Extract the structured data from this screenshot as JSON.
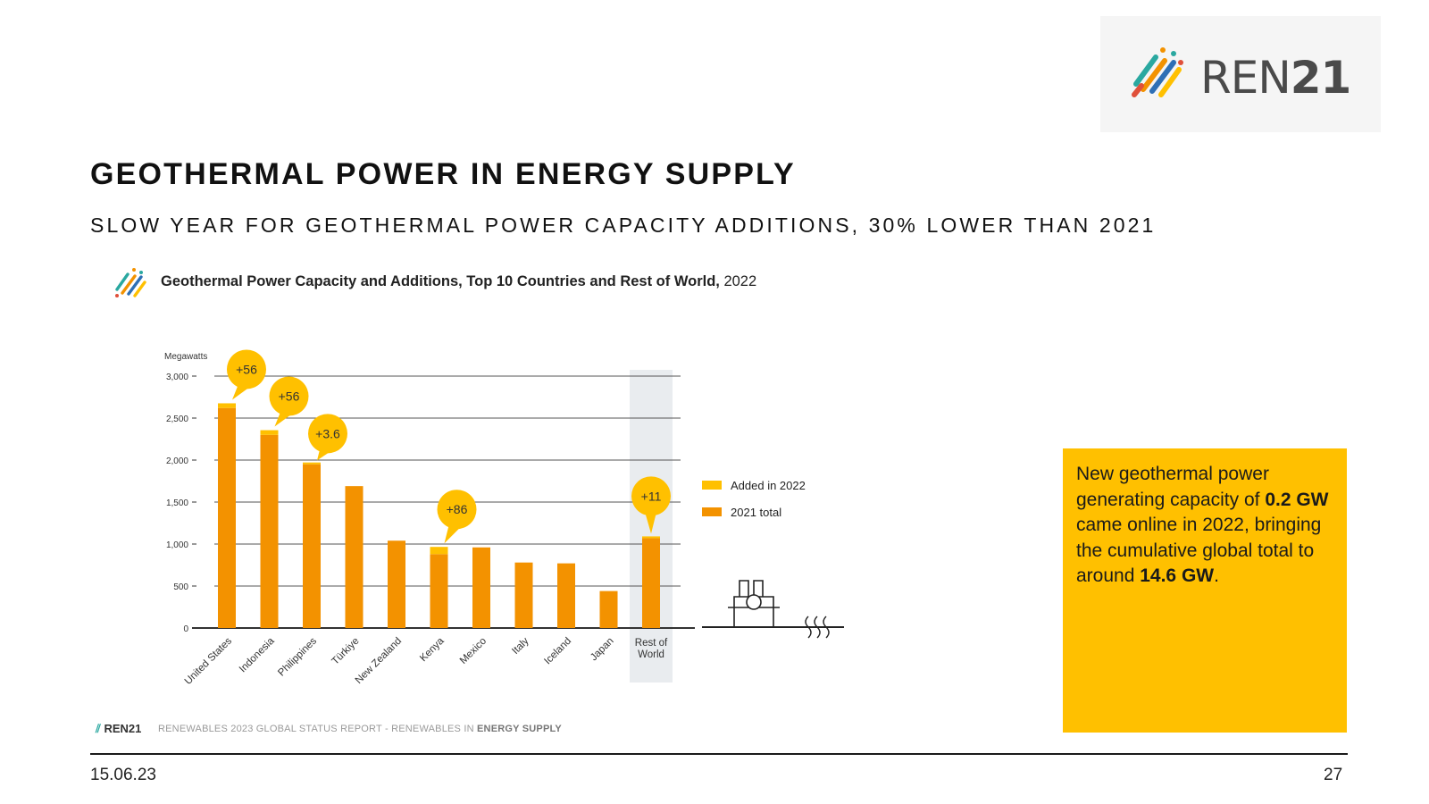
{
  "logo": {
    "text_regular": "REN",
    "text_bold": "21"
  },
  "slide": {
    "title": "GEOTHERMAL POWER IN ENERGY SUPPLY",
    "subtitle": "SLOW YEAR FOR GEOTHERMAL POWER CAPACITY ADDITIONS, 30% LOWER THAN 2021"
  },
  "chart_header": {
    "title_bold": "Geothermal Power Capacity and Additions, Top 10 Countries and Rest of World,",
    "title_year": "2022"
  },
  "chart_data": {
    "type": "bar",
    "stacked": true,
    "title": "Geothermal Power Capacity and Additions, Top 10 Countries and Rest of World, 2022",
    "ylabel": "Megawatts",
    "ylim": [
      0,
      3000
    ],
    "yticks": [
      "0",
      "500",
      "1,000",
      "1,500",
      "2,000",
      "2,500",
      "3,000"
    ],
    "ytick_values": [
      0,
      500,
      1000,
      1500,
      2000,
      2500,
      3000
    ],
    "categories": [
      "United States",
      "Indonesia",
      "Philippines",
      "Türkiye",
      "New Zealand",
      "Kenya",
      "Mexico",
      "Italy",
      "Iceland",
      "Japan",
      "Rest of World"
    ],
    "series": [
      {
        "name": "2021 total",
        "color": "#f39200",
        "values": [
          2620,
          2300,
          1950,
          1690,
          1040,
          880,
          960,
          780,
          770,
          440,
          1070
        ]
      },
      {
        "name": "Added in 2022",
        "color": "#ffc000",
        "values": [
          56,
          56,
          3.6,
          0,
          0,
          86,
          0,
          0,
          0,
          0,
          11
        ]
      }
    ],
    "annotations": [
      {
        "category": "United States",
        "label": "+56"
      },
      {
        "category": "Indonesia",
        "label": "+56"
      },
      {
        "category": "Philippines",
        "label": "+3.6"
      },
      {
        "category": "Kenya",
        "label": "+86"
      },
      {
        "category": "Rest of World",
        "label": "+11"
      }
    ],
    "legend": [
      "Added in 2022",
      "2021 total"
    ],
    "legend_position": "right"
  },
  "note": {
    "parts": [
      {
        "text": "New geothermal power generating capacity of ",
        "bold": false
      },
      {
        "text": "0.2 GW",
        "bold": true
      },
      {
        "text": " came online in 2022, bringing the cumulative global total to around ",
        "bold": false
      },
      {
        "text": "14.6 GW",
        "bold": true
      },
      {
        "text": ".",
        "bold": false
      }
    ]
  },
  "source": {
    "logo_text": "REN21",
    "text_regular": "RENEWABLES 2023 GLOBAL STATUS REPORT - RENEWABLES IN",
    "text_bold": "ENERGY SUPPLY"
  },
  "footer": {
    "date": "15.06.23",
    "page": "27"
  },
  "colors": {
    "dark_orange": "#f39200",
    "yellow": "#ffc000",
    "note_bg": "#ffc000",
    "grid": "#555555",
    "row_shade": "#e9ecef"
  }
}
